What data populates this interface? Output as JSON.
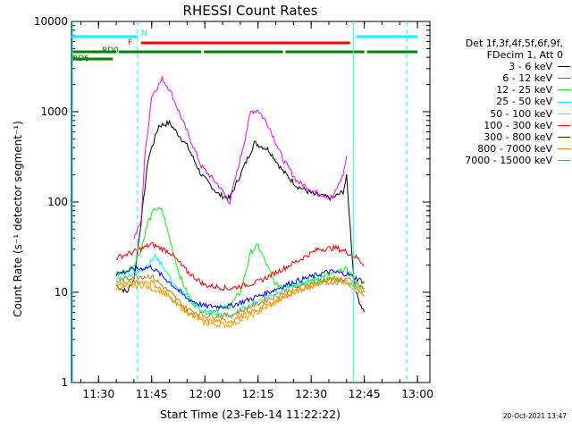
{
  "chart_data": {
    "type": "line",
    "title": "RHESSI Count Rates",
    "xlabel": "Start Time (23-Feb-14 11:22:22)",
    "ylabel": "Count Rate (s⁻¹ detector segment⁻¹)",
    "yscale": "log",
    "ylim": [
      1,
      10000
    ],
    "xlim": [
      "11:22:22",
      "13:03:30"
    ],
    "x_ticks": [
      "11:30",
      "11:45",
      "12:00",
      "12:15",
      "12:30",
      "12:45",
      "13:00"
    ],
    "y_ticks": [
      "1",
      "10",
      "100",
      "1000",
      "10000"
    ],
    "grid": false,
    "legend_position": "right",
    "legend_header": [
      "Det 1f,3f,4f,5f,6f,9f,",
      "FDecim 1, Att 0"
    ],
    "series": [
      {
        "name": "3 - 6 keV",
        "color": "#000000",
        "x": [
          "11:35",
          "11:38",
          "11:40",
          "11:42",
          "11:44",
          "11:47",
          "11:50",
          "11:55",
          "11:59",
          "12:04",
          "12:07",
          "12:10",
          "12:14",
          "12:18",
          "12:22",
          "12:26",
          "12:31",
          "12:36",
          "12:39",
          "12:40",
          "12:42",
          "12:43",
          "12:45"
        ],
        "y": [
          12,
          10,
          14,
          60,
          300,
          700,
          750,
          420,
          200,
          120,
          110,
          200,
          450,
          380,
          220,
          150,
          120,
          110,
          130,
          190,
          15,
          9,
          6
        ]
      },
      {
        "name": "6 - 12 keV",
        "color": "#ff00ff",
        "x": [
          "11:40",
          "11:42",
          "11:43",
          "11:45",
          "11:48",
          "11:50",
          "11:55",
          "11:59",
          "12:04",
          "12:07",
          "12:10",
          "12:13",
          "12:15",
          "12:18",
          "12:22",
          "12:26",
          "12:31",
          "12:36",
          "12:39",
          "12:40"
        ],
        "y": [
          40,
          60,
          300,
          1500,
          2300,
          1800,
          600,
          250,
          150,
          100,
          300,
          1000,
          1050,
          700,
          300,
          170,
          130,
          110,
          200,
          320
        ]
      },
      {
        "name": "12 - 25 keV",
        "color": "#00ff00",
        "x": [
          "11:35",
          "11:38",
          "11:40",
          "11:42",
          "11:44",
          "11:46",
          "11:48",
          "11:50",
          "11:53",
          "11:56",
          "12:00",
          "12:07",
          "12:10",
          "12:13",
          "12:15",
          "12:18",
          "12:20",
          "12:26",
          "12:31",
          "12:36",
          "12:40",
          "12:43",
          "12:45"
        ],
        "y": [
          16,
          17,
          20,
          30,
          60,
          85,
          80,
          40,
          15,
          8,
          6,
          7,
          10,
          28,
          33,
          18,
          12,
          12,
          14,
          16,
          18,
          13,
          10
        ]
      },
      {
        "name": "25 - 50 keV",
        "color": "#00ffff",
        "x": [
          "11:35",
          "11:40",
          "11:44",
          "11:46",
          "11:48",
          "11:52",
          "12:00",
          "12:07",
          "12:15",
          "12:25",
          "12:35",
          "12:40",
          "12:43",
          "12:45"
        ],
        "y": [
          14,
          16,
          20,
          25,
          20,
          11,
          6,
          5.5,
          8,
          12,
          14,
          13,
          11,
          9
        ]
      },
      {
        "name": "50 - 100 keV",
        "color": "#ffa500",
        "x": [
          "11:35",
          "11:42",
          "11:48",
          "11:55",
          "12:00",
          "12:07",
          "12:15",
          "12:25",
          "12:35",
          "12:40",
          "12:45"
        ],
        "y": [
          11,
          12,
          10,
          6,
          4.5,
          4.3,
          6,
          10,
          14,
          13,
          9
        ]
      },
      {
        "name": "100 - 300 keV",
        "color": "#ff0000",
        "x": [
          "11:35",
          "11:40",
          "11:45",
          "11:50",
          "11:55",
          "12:00",
          "12:07",
          "12:15",
          "12:25",
          "12:32",
          "12:37",
          "12:40",
          "12:43",
          "12:45"
        ],
        "y": [
          24,
          28,
          34,
          28,
          17,
          12,
          11,
          13,
          21,
          30,
          31,
          28,
          24,
          20
        ]
      },
      {
        "name": "300 - 800 keV",
        "color": "#0000ff",
        "x": [
          "11:35",
          "11:40",
          "11:45",
          "11:50",
          "11:55",
          "12:00",
          "12:07",
          "12:15",
          "12:25",
          "12:35",
          "12:40",
          "12:45"
        ],
        "y": [
          16,
          18,
          19,
          13,
          8.5,
          7,
          7,
          9,
          13,
          17,
          16,
          13
        ]
      },
      {
        "name": "800 - 7000 keV",
        "color": "#ff8c00",
        "x": [
          "11:35",
          "11:40",
          "11:45",
          "11:50",
          "11:55",
          "12:00",
          "12:07",
          "12:15",
          "12:25",
          "12:35",
          "12:40",
          "12:45"
        ],
        "y": [
          12,
          13,
          13,
          9,
          6,
          4.8,
          4.8,
          6.5,
          10,
          13,
          13,
          10
        ]
      },
      {
        "name": "7000 - 15000 keV",
        "color": "#b8860b",
        "x": [
          "11:35",
          "11:40",
          "11:45",
          "11:50",
          "11:55",
          "12:00",
          "12:07",
          "12:15",
          "12:25",
          "12:35",
          "12:40",
          "12:45"
        ],
        "y": [
          13,
          15,
          15,
          10,
          6.5,
          5.5,
          5.5,
          7.5,
          11,
          14,
          14,
          11
        ]
      }
    ],
    "flag_bars": [
      {
        "label": "N",
        "color": "#00ffff",
        "segments": [
          [
            "11:22:22",
            "11:41"
          ],
          [
            "12:42",
            "13:00"
          ]
        ]
      },
      {
        "label": "F",
        "color": "#ff0000",
        "segments": [
          [
            "11:42",
            "12:41"
          ]
        ]
      },
      {
        "label": "RD0",
        "color": "#008000",
        "segments": [
          [
            "11:22:22",
            "11:35"
          ],
          [
            "11:35",
            "11:59"
          ],
          [
            "11:59",
            "12:22"
          ],
          [
            "12:22",
            "12:45"
          ],
          [
            "12:45",
            "13:00"
          ]
        ]
      },
      {
        "label": "RD6",
        "color": "#008000",
        "segments": [
          [
            "11:22:22",
            "11:34"
          ]
        ]
      }
    ],
    "vertical_markers": [
      {
        "x": "11:22:22",
        "color": "#00ffff",
        "style": "solid"
      },
      {
        "x": "11:41",
        "color": "#00ffff",
        "style": "dashed"
      },
      {
        "x": "12:42",
        "color": "#00ffff",
        "style": "solid"
      },
      {
        "x": "12:57",
        "color": "#00ffff",
        "style": "dashed"
      }
    ],
    "footer_date": "20-Oct-2021 13:47"
  }
}
